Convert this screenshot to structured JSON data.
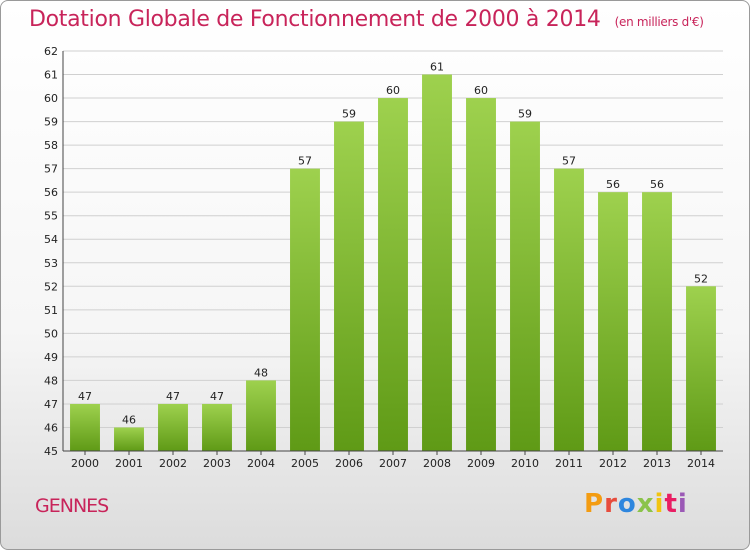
{
  "header": {
    "title": "Dotation Globale de Fonctionnement de 2000 à 2014",
    "unit": "(en milliers d'€)"
  },
  "footer": {
    "commune": "GENNES",
    "logo_text": "Proxiti",
    "logo_colors": [
      "#f39c12",
      "#e74c3c",
      "#2e86de",
      "#8bc34a",
      "#f1c40f",
      "#e91e63",
      "#9b59b6"
    ]
  },
  "colors": {
    "accent": "#c8245a",
    "bar_top": "#9ed14e",
    "bar_bottom": "#5f9a16",
    "grid": "#d0d0d0"
  },
  "chart_data": {
    "type": "bar",
    "title": "Dotation Globale de Fonctionnement de 2000 à 2014",
    "subtitle": "(en milliers d'€)",
    "xlabel": "",
    "ylabel": "",
    "categories": [
      "2000",
      "2001",
      "2002",
      "2003",
      "2004",
      "2005",
      "2006",
      "2007",
      "2008",
      "2009",
      "2010",
      "2011",
      "2012",
      "2013",
      "2014"
    ],
    "values": [
      47,
      46,
      47,
      47,
      48,
      57,
      59,
      60,
      61,
      60,
      59,
      57,
      56,
      56,
      52
    ],
    "ylim": [
      45,
      62
    ],
    "yticks": [
      45,
      46,
      47,
      48,
      49,
      50,
      51,
      52,
      53,
      54,
      55,
      56,
      57,
      58,
      59,
      60,
      61,
      62
    ],
    "grid": true,
    "legend": "none"
  }
}
